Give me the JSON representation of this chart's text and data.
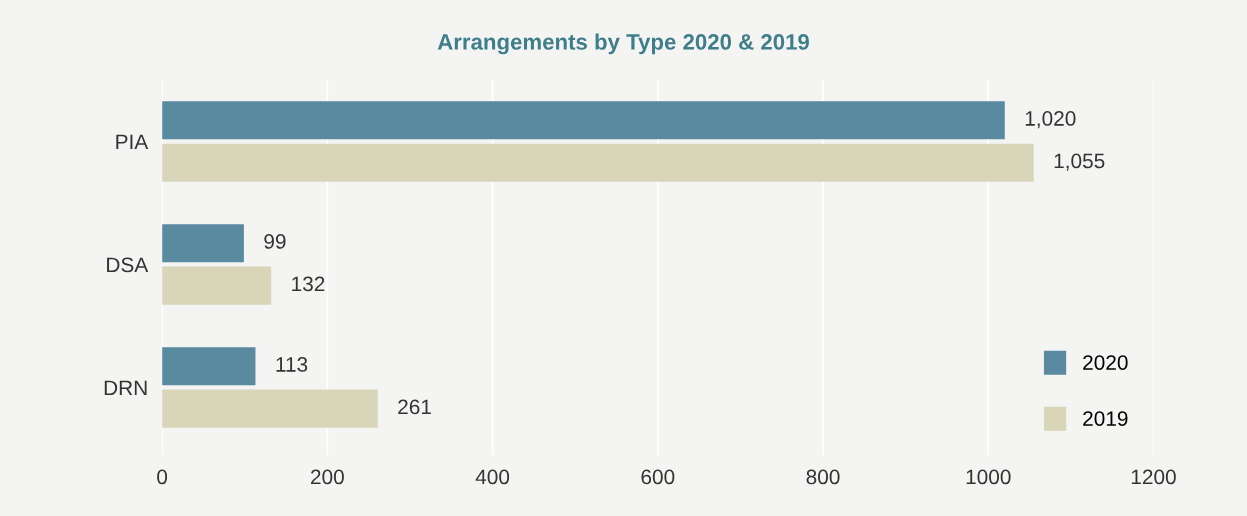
{
  "chart_data": {
    "type": "bar",
    "orientation": "horizontal",
    "title": "Arrangements by Type 2020 & 2019",
    "categories": [
      "PIA",
      "DSA",
      "DRN"
    ],
    "series": [
      {
        "name": "2020",
        "color": "#5a8aa0",
        "values": [
          1020,
          99,
          113
        ],
        "value_labels": [
          "1,020",
          "99",
          "113"
        ]
      },
      {
        "name": "2019",
        "color": "#d8d5b8",
        "values": [
          1055,
          132,
          261
        ],
        "value_labels": [
          "1,055",
          "132",
          "261"
        ]
      }
    ],
    "xlim": [
      0,
      1200
    ],
    "xticks": [
      0,
      200,
      400,
      600,
      800,
      1000,
      1200
    ],
    "grid": "x",
    "legend": "bottom right"
  }
}
